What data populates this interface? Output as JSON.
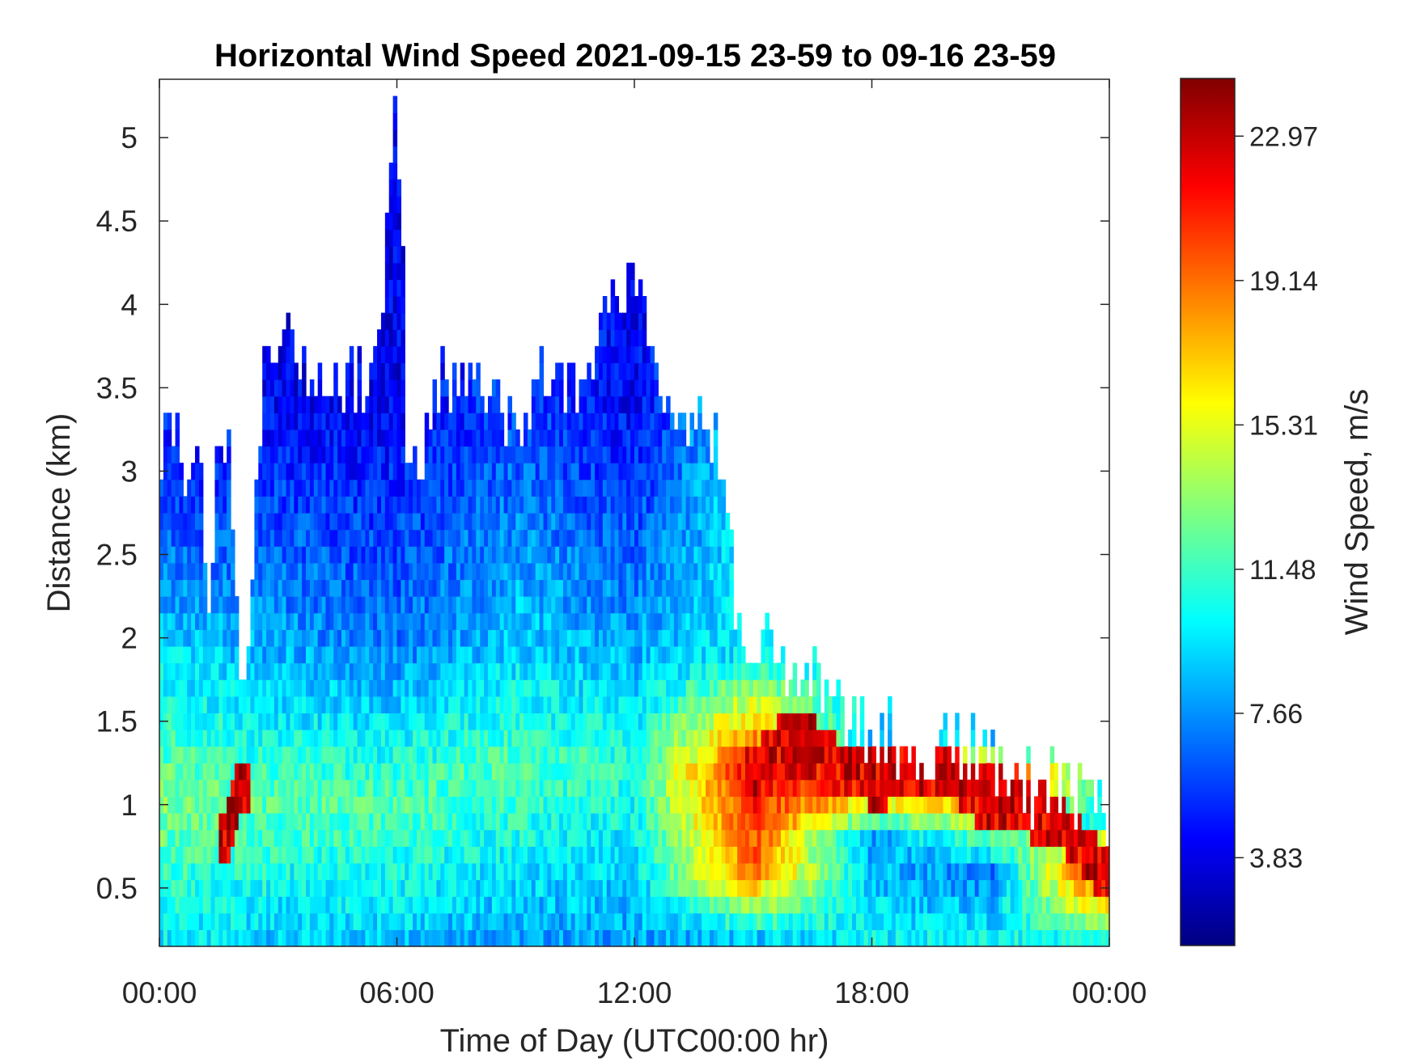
{
  "chart_data": {
    "type": "heatmap",
    "title": "Horizontal Wind Speed 2021-09-15 23-59 to 09-16 23-59",
    "xlabel": "Time of Day (UTC00:00 hr)",
    "ylabel": "Distance (km)",
    "x_range_hours": [
      0,
      24
    ],
    "y_range_km": [
      0.15,
      5.35
    ],
    "x_ticks": [
      {
        "hour": 0,
        "label": "00:00"
      },
      {
        "hour": 6,
        "label": "06:00"
      },
      {
        "hour": 12,
        "label": "12:00"
      },
      {
        "hour": 18,
        "label": "18:00"
      },
      {
        "hour": 24,
        "label": "00:00"
      }
    ],
    "y_ticks": [
      {
        "km": 0.5,
        "label": "0.5"
      },
      {
        "km": 1,
        "label": "1"
      },
      {
        "km": 1.5,
        "label": "1.5"
      },
      {
        "km": 2,
        "label": "2"
      },
      {
        "km": 2.5,
        "label": "2.5"
      },
      {
        "km": 3,
        "label": "3"
      },
      {
        "km": 3.5,
        "label": "3.5"
      },
      {
        "km": 4,
        "label": "4"
      },
      {
        "km": 4.5,
        "label": "4.5"
      },
      {
        "km": 5,
        "label": "5"
      }
    ],
    "colorbar": {
      "label": "Wind Speed, m/s",
      "colormap": "jet",
      "range": [
        1.5,
        24.5
      ],
      "ticks": [
        {
          "value": 3.83,
          "label": "3.83"
        },
        {
          "value": 7.66,
          "label": "7.66"
        },
        {
          "value": 11.48,
          "label": "11.48"
        },
        {
          "value": 15.31,
          "label": "15.31"
        },
        {
          "value": 19.14,
          "label": "19.14"
        },
        {
          "value": 22.97,
          "label": "22.97"
        }
      ]
    },
    "grid": false,
    "data_top_km_by_hour": [
      {
        "hour": 0,
        "top_km": 3.2
      },
      {
        "hour": 1,
        "top_km": 3.1
      },
      {
        "hour": 1.2,
        "top_km": 2.1
      },
      {
        "hour": 1.5,
        "top_km": 3.2
      },
      {
        "hour": 1.8,
        "top_km": 3.2
      },
      {
        "hour": 2.1,
        "top_km": 1.4
      },
      {
        "hour": 2.6,
        "top_km": 3.5
      },
      {
        "hour": 3,
        "top_km": 3.75
      },
      {
        "hour": 5.5,
        "top_km": 3.5
      },
      {
        "hour": 6,
        "top_km": 5.3
      },
      {
        "hour": 6.3,
        "top_km": 2.9
      },
      {
        "hour": 7,
        "top_km": 3.5
      },
      {
        "hour": 9,
        "top_km": 3.4
      },
      {
        "hour": 11,
        "top_km": 3.7
      },
      {
        "hour": 12,
        "top_km": 4.1
      },
      {
        "hour": 13,
        "top_km": 3.4
      },
      {
        "hour": 14,
        "top_km": 3.3
      },
      {
        "hour": 14.6,
        "top_km": 2.1
      },
      {
        "hour": 15.5,
        "top_km": 1.9
      },
      {
        "hour": 16.5,
        "top_km": 1.9
      },
      {
        "hour": 17.2,
        "top_km": 1.55
      },
      {
        "hour": 18,
        "top_km": 1.4
      },
      {
        "hour": 20.5,
        "top_km": 1.35
      },
      {
        "hour": 21.5,
        "top_km": 1.2
      },
      {
        "hour": 23.5,
        "top_km": 0.95
      },
      {
        "hour": 24,
        "top_km": 0.9
      }
    ],
    "wind_speed_profiles_ms": [
      {
        "hour": 0,
        "profile": [
          {
            "km": 0.2,
            "speed": 10
          },
          {
            "km": 1,
            "speed": 13
          },
          {
            "km": 2,
            "speed": 9
          },
          {
            "km": 3,
            "speed": 5
          }
        ]
      },
      {
        "hour": 3,
        "profile": [
          {
            "km": 0.2,
            "speed": 9
          },
          {
            "km": 1,
            "speed": 12
          },
          {
            "km": 2,
            "speed": 8
          },
          {
            "km": 3.5,
            "speed": 4
          }
        ]
      },
      {
        "hour": 6,
        "profile": [
          {
            "km": 0.2,
            "speed": 9
          },
          {
            "km": 1,
            "speed": 12
          },
          {
            "km": 2,
            "speed": 7
          },
          {
            "km": 3.5,
            "speed": 4
          }
        ]
      },
      {
        "hour": 9,
        "profile": [
          {
            "km": 0.2,
            "speed": 8
          },
          {
            "km": 1.2,
            "speed": 12
          },
          {
            "km": 2,
            "speed": 9
          },
          {
            "km": 3.3,
            "speed": 6
          }
        ]
      },
      {
        "hour": 12,
        "profile": [
          {
            "km": 0.2,
            "speed": 8
          },
          {
            "km": 1.2,
            "speed": 11
          },
          {
            "km": 2,
            "speed": 8
          },
          {
            "km": 3.5,
            "speed": 4
          }
        ]
      },
      {
        "hour": 15,
        "profile": [
          {
            "km": 0.2,
            "speed": 9
          },
          {
            "km": 0.6,
            "speed": 19
          },
          {
            "km": 1.2,
            "speed": 22
          },
          {
            "km": 1.9,
            "speed": 10
          }
        ]
      },
      {
        "hour": 18,
        "profile": [
          {
            "km": 0.2,
            "speed": 10
          },
          {
            "km": 0.8,
            "speed": 8
          },
          {
            "km": 1.2,
            "speed": 23
          },
          {
            "km": 1.4,
            "speed": 9
          }
        ]
      },
      {
        "hour": 21,
        "profile": [
          {
            "km": 0.2,
            "speed": 10
          },
          {
            "km": 0.6,
            "speed": 7
          },
          {
            "km": 1.2,
            "speed": 23
          },
          {
            "km": 1.35,
            "speed": 9
          }
        ]
      },
      {
        "hour": 24,
        "profile": [
          {
            "km": 0.2,
            "speed": 11
          },
          {
            "km": 0.6,
            "speed": 23
          },
          {
            "km": 0.9,
            "speed": 10
          }
        ]
      }
    ],
    "low_level_jet_km_by_hour": [
      {
        "hour": 1.7,
        "km": 0.8
      },
      {
        "hour": 2,
        "km": 1.1
      },
      {
        "hour": 15,
        "km": 1.2
      },
      {
        "hour": 16,
        "km": 1.45
      },
      {
        "hour": 17,
        "km": 1.25
      },
      {
        "hour": 18,
        "km": 1.15
      },
      {
        "hour": 20,
        "km": 1.2
      },
      {
        "hour": 21,
        "km": 0.98
      },
      {
        "hour": 22.5,
        "km": 0.95
      },
      {
        "hour": 23.5,
        "km": 0.7
      },
      {
        "hour": 24,
        "km": 0.55
      }
    ]
  }
}
